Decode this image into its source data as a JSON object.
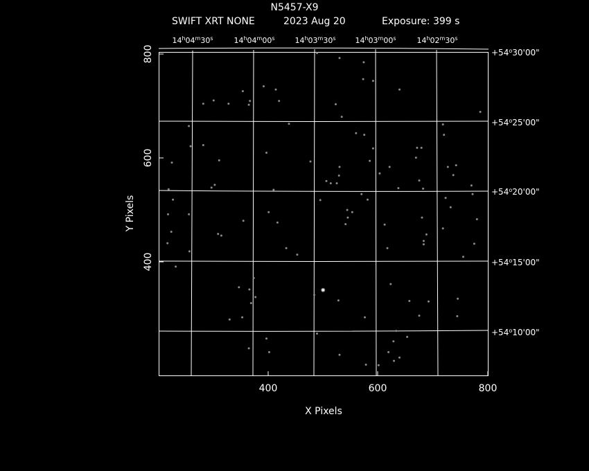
{
  "header": {
    "field_name": "N5457-X9",
    "subtitle_instrument": "SWIFT XRT NONE",
    "subtitle_date": "2023 Aug 20",
    "subtitle_exposure": "Exposure: 399 s"
  },
  "colors": {
    "background": "#000000",
    "foreground": "#ffffff",
    "grid": "#ffffff",
    "source_dim": "#8a8a8a",
    "source_bright": "#ffffff"
  },
  "chart_data": {
    "type": "scatter",
    "title": "N5457-X9",
    "subtitle": "SWIFT XRT NONE   2023 Aug 20    Exposure: 399 s",
    "xlabel": "X Pixels",
    "ylabel": "Y Pixels",
    "xlim": [
      200,
      800
    ],
    "ylim": [
      207,
      802
    ],
    "x_ticks": [
      400,
      600,
      800
    ],
    "y_ticks": [
      400,
      600,
      800
    ],
    "x_tick_labels": [
      "400",
      "600",
      "800"
    ],
    "y_tick_labels": [
      "400",
      "600",
      "800"
    ],
    "grid": true,
    "ra_ticks": [
      {
        "label": "14h04m30s",
        "h": "14",
        "m": "04",
        "s": "30",
        "x_top": 266
      },
      {
        "label": "14h04m00s",
        "h": "14",
        "m": "04",
        "s": "00",
        "x_top": 378
      },
      {
        "label": "14h03m30s",
        "h": "14",
        "m": "03",
        "s": "30",
        "x_top": 489
      },
      {
        "label": "14h03m00s",
        "h": "14",
        "m": "03",
        "s": "00",
        "x_top": 601
      },
      {
        "label": "14h02m30s",
        "h": "14",
        "m": "02",
        "s": "30",
        "x_top": 712
      }
    ],
    "dec_ticks": [
      {
        "label": "+54°30'00\"",
        "deg": "+54",
        "arcmin": "30",
        "arcsec": "00",
        "y_right": 799
      },
      {
        "label": "+54°25'00\"",
        "deg": "+54",
        "arcmin": "25",
        "arcsec": "00",
        "y_right": 665
      },
      {
        "label": "+54°20'00\"",
        "deg": "+54",
        "arcmin": "20",
        "arcsec": "00",
        "y_right": 531
      },
      {
        "label": "+54°15'00\"",
        "deg": "+54",
        "arcmin": "15",
        "arcsec": "00",
        "y_right": 397
      },
      {
        "label": "+54°10'00\"",
        "deg": "+54",
        "arcmin": "10",
        "arcsec": "00",
        "y_right": 262
      }
    ],
    "sources": [
      {
        "x": 488,
        "y": 800
      },
      {
        "x": 529,
        "y": 791
      },
      {
        "x": 573,
        "y": 783
      },
      {
        "x": 572,
        "y": 752
      },
      {
        "x": 590,
        "y": 749
      },
      {
        "x": 353,
        "y": 730
      },
      {
        "x": 391,
        "y": 739
      },
      {
        "x": 413,
        "y": 733
      },
      {
        "x": 638,
        "y": 733
      },
      {
        "x": 281,
        "y": 707
      },
      {
        "x": 300,
        "y": 713
      },
      {
        "x": 327,
        "y": 707
      },
      {
        "x": 364,
        "y": 705
      },
      {
        "x": 366,
        "y": 712
      },
      {
        "x": 419,
        "y": 712
      },
      {
        "x": 522,
        "y": 706
      },
      {
        "x": 533,
        "y": 683
      },
      {
        "x": 785,
        "y": 692
      },
      {
        "x": 437,
        "y": 670
      },
      {
        "x": 255,
        "y": 666
      },
      {
        "x": 717,
        "y": 669
      },
      {
        "x": 559,
        "y": 653
      },
      {
        "x": 574,
        "y": 650
      },
      {
        "x": 719,
        "y": 650
      },
      {
        "x": 258,
        "y": 629
      },
      {
        "x": 281,
        "y": 631
      },
      {
        "x": 590,
        "y": 625
      },
      {
        "x": 670,
        "y": 626
      },
      {
        "x": 678,
        "y": 626
      },
      {
        "x": 396,
        "y": 617
      },
      {
        "x": 310,
        "y": 603
      },
      {
        "x": 476,
        "y": 601
      },
      {
        "x": 584,
        "y": 602
      },
      {
        "x": 668,
        "y": 608
      },
      {
        "x": 224,
        "y": 599
      },
      {
        "x": 529,
        "y": 591
      },
      {
        "x": 620,
        "y": 591
      },
      {
        "x": 726,
        "y": 591
      },
      {
        "x": 741,
        "y": 594
      },
      {
        "x": 602,
        "y": 579
      },
      {
        "x": 528,
        "y": 575
      },
      {
        "x": 736,
        "y": 576
      },
      {
        "x": 505,
        "y": 565
      },
      {
        "x": 513,
        "y": 561
      },
      {
        "x": 524,
        "y": 561
      },
      {
        "x": 674,
        "y": 566
      },
      {
        "x": 302,
        "y": 558
      },
      {
        "x": 296,
        "y": 553
      },
      {
        "x": 636,
        "y": 552
      },
      {
        "x": 681,
        "y": 551
      },
      {
        "x": 218,
        "y": 550
      },
      {
        "x": 409,
        "y": 549
      },
      {
        "x": 769,
        "y": 557
      },
      {
        "x": 722,
        "y": 534
      },
      {
        "x": 771,
        "y": 541
      },
      {
        "x": 226,
        "y": 531
      },
      {
        "x": 569,
        "y": 541
      },
      {
        "x": 580,
        "y": 531
      },
      {
        "x": 494,
        "y": 530
      },
      {
        "x": 731,
        "y": 517
      },
      {
        "x": 543,
        "y": 512
      },
      {
        "x": 717,
        "y": 478
      },
      {
        "x": 217,
        "y": 504
      },
      {
        "x": 255,
        "y": 504
      },
      {
        "x": 400,
        "y": 508
      },
      {
        "x": 552,
        "y": 508
      },
      {
        "x": 679,
        "y": 498
      },
      {
        "x": 779,
        "y": 495
      },
      {
        "x": 416,
        "y": 489
      },
      {
        "x": 354,
        "y": 492
      },
      {
        "x": 544,
        "y": 498
      },
      {
        "x": 540,
        "y": 486
      },
      {
        "x": 611,
        "y": 485
      },
      {
        "x": 687,
        "y": 467
      },
      {
        "x": 223,
        "y": 472
      },
      {
        "x": 308,
        "y": 468
      },
      {
        "x": 314,
        "y": 465
      },
      {
        "x": 774,
        "y": 450
      },
      {
        "x": 216,
        "y": 451
      },
      {
        "x": 682,
        "y": 449
      },
      {
        "x": 682,
        "y": 455
      },
      {
        "x": 432,
        "y": 442
      },
      {
        "x": 616,
        "y": 442
      },
      {
        "x": 256,
        "y": 436
      },
      {
        "x": 452,
        "y": 430
      },
      {
        "x": 754,
        "y": 426
      },
      {
        "x": 231,
        "y": 408
      },
      {
        "x": 373,
        "y": 387
      },
      {
        "x": 346,
        "y": 370
      },
      {
        "x": 622,
        "y": 376
      },
      {
        "x": 365,
        "y": 366
      },
      {
        "x": 483,
        "y": 356
      },
      {
        "x": 376,
        "y": 352
      },
      {
        "x": 744,
        "y": 349
      },
      {
        "x": 527,
        "y": 346
      },
      {
        "x": 656,
        "y": 345
      },
      {
        "x": 691,
        "y": 344
      },
      {
        "x": 368,
        "y": 341
      },
      {
        "x": 743,
        "y": 317
      },
      {
        "x": 329,
        "y": 311
      },
      {
        "x": 352,
        "y": 315
      },
      {
        "x": 575,
        "y": 315
      },
      {
        "x": 674,
        "y": 318
      },
      {
        "x": 632,
        "y": 290
      },
      {
        "x": 488,
        "y": 285
      },
      {
        "x": 652,
        "y": 279
      },
      {
        "x": 396,
        "y": 276
      },
      {
        "x": 627,
        "y": 271
      },
      {
        "x": 364,
        "y": 258
      },
      {
        "x": 401,
        "y": 251
      },
      {
        "x": 618,
        "y": 251
      },
      {
        "x": 529,
        "y": 246
      },
      {
        "x": 638,
        "y": 241
      },
      {
        "x": 628,
        "y": 235
      },
      {
        "x": 577,
        "y": 228
      },
      {
        "x": 600,
        "y": 227
      }
    ],
    "bright_sources": [
      {
        "x": 499,
        "y": 365
      }
    ]
  }
}
